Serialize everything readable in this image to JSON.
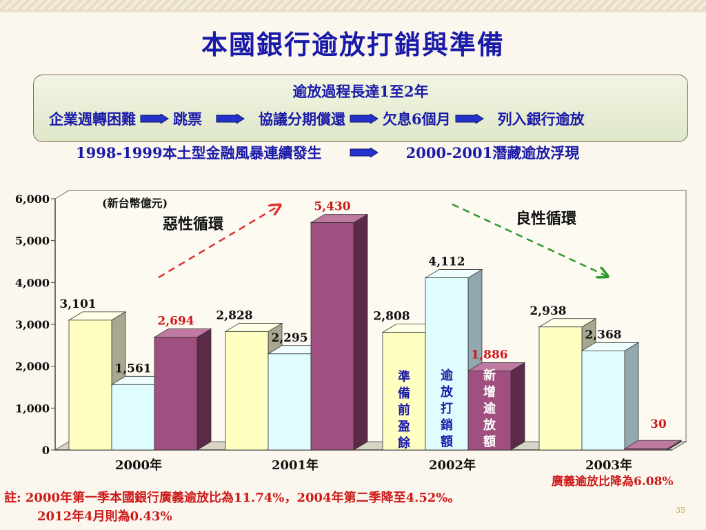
{
  "title": "本國銀行逾放打銷與準備",
  "process": {
    "heading": "逾放過程長達1至2年",
    "steps": [
      "企業週轉困難",
      "跳票",
      "協議分期償還",
      "欠息6個月",
      "列入銀行逾放"
    ]
  },
  "crisis": {
    "left": "1998-1999本土型金融風暴連續發生",
    "right": "2000-2001潛藏逾放浮現"
  },
  "colors": {
    "heading_blue": "#1a1aa8",
    "red_text": "#cc1a1a",
    "bar_yellow": "#ffffc2",
    "bar_cyan": "#dffcff",
    "bar_purple": "#a05080",
    "arrow_red": "#e03030",
    "arrow_green": "#2a9a2a"
  },
  "chart_data": {
    "type": "bar",
    "unit_label": "(新台幣億元)",
    "categories": [
      "2000年",
      "2001年",
      "2002年",
      "2003年"
    ],
    "series": [
      {
        "name": "準備前盈餘",
        "values": [
          3101,
          2828,
          2808,
          2938
        ],
        "labels": [
          "3,101",
          "2,828",
          "2,808",
          "2,938"
        ]
      },
      {
        "name": "逾放打銷額",
        "values": [
          1561,
          2295,
          4112,
          2368
        ],
        "labels": [
          "1,561",
          "2,295",
          "4,112",
          "2,368"
        ]
      },
      {
        "name": "新增逾放額",
        "values": [
          2694,
          5430,
          1886,
          30
        ],
        "labels": [
          "2,694",
          "5,430",
          "1,886",
          "30"
        ]
      }
    ],
    "ylim": [
      0,
      6000
    ],
    "yticks": [
      "0",
      "1,000",
      "2,000",
      "3,000",
      "4,000",
      "5,000",
      "6,000"
    ],
    "annotations": {
      "vicious": "惡性循環",
      "virtuous": "良性循環",
      "ratio_2003": "廣義逾放比降為6.08%"
    }
  },
  "note": {
    "line1": "註: 2000年第一季本國銀行廣義逾放比為11.74%，2004年第二季降至4.52%。",
    "line2": "2012年4月則為0.43%"
  },
  "page_number": "35"
}
